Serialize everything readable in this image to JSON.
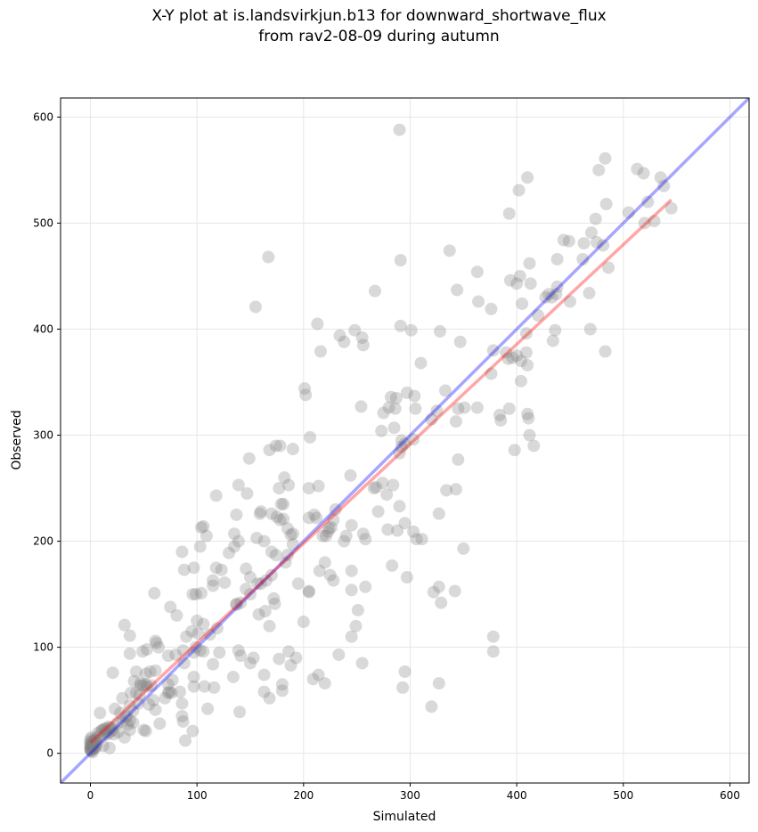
{
  "title_line1": "X-Y plot at is.landsvirkjun.b13 for downward_shortwave_flux",
  "title_line2": "from rav2-08-09 during autumn",
  "colors": {
    "points": "#808080",
    "identity_line": "#0000ff",
    "regression_line": "#ff0000",
    "grid": "#e6e6e6"
  },
  "chart_data": {
    "type": "scatter",
    "title": "X-Y plot at is.landsvirkjun.b13 for downward_shortwave_flux from rav2-08-09 during autumn",
    "xlabel": "Simulated",
    "ylabel": "Observed",
    "xlim": [
      -28,
      618
    ],
    "ylim": [
      -28,
      618
    ],
    "xticks": [
      0,
      100,
      200,
      300,
      400,
      500,
      600
    ],
    "yticks": [
      0,
      100,
      200,
      300,
      400,
      500,
      600
    ],
    "grid": true,
    "identity_line": {
      "x": [
        -28,
        618
      ],
      "y": [
        -28,
        618
      ]
    },
    "regression_line": {
      "x": [
        0,
        545
      ],
      "y": [
        10,
        522
      ]
    },
    "points": [
      [
        290,
        588
      ],
      [
        167,
        468
      ],
      [
        291,
        465
      ],
      [
        155,
        421
      ],
      [
        267,
        436
      ],
      [
        213,
        405
      ],
      [
        291,
        403
      ],
      [
        301,
        399
      ],
      [
        234,
        394
      ],
      [
        248,
        399
      ],
      [
        255,
        392
      ],
      [
        256,
        385
      ],
      [
        238,
        388
      ],
      [
        216,
        379
      ],
      [
        328,
        398
      ],
      [
        310,
        368
      ],
      [
        337,
        474
      ],
      [
        363,
        454
      ],
      [
        344,
        437
      ],
      [
        347,
        388
      ],
      [
        364,
        426
      ],
      [
        376,
        419
      ],
      [
        393,
        509
      ],
      [
        402,
        531
      ],
      [
        410,
        543
      ],
      [
        412,
        462
      ],
      [
        403,
        450
      ],
      [
        400,
        443
      ],
      [
        394,
        446
      ],
      [
        405,
        424
      ],
      [
        413,
        443
      ],
      [
        378,
        380
      ],
      [
        396,
        373
      ],
      [
        390,
        378
      ],
      [
        392,
        372
      ],
      [
        404,
        370
      ],
      [
        410,
        366
      ],
      [
        409,
        396
      ],
      [
        409,
        378
      ],
      [
        411,
        316
      ],
      [
        412,
        300
      ],
      [
        398,
        286
      ],
      [
        393,
        325
      ],
      [
        385,
        314
      ],
      [
        384,
        319
      ],
      [
        376,
        358
      ],
      [
        363,
        326
      ],
      [
        351,
        326
      ],
      [
        345,
        325
      ],
      [
        343,
        313
      ],
      [
        333,
        342
      ],
      [
        325,
        323
      ],
      [
        320,
        315
      ],
      [
        305,
        325
      ],
      [
        303,
        296
      ],
      [
        297,
        340
      ],
      [
        304,
        337
      ],
      [
        282,
        336
      ],
      [
        287,
        335
      ],
      [
        280,
        326
      ],
      [
        286,
        325
      ],
      [
        275,
        321
      ],
      [
        273,
        304
      ],
      [
        285,
        307
      ],
      [
        292,
        295
      ],
      [
        292,
        289
      ],
      [
        290,
        283
      ],
      [
        295,
        292
      ],
      [
        284,
        253
      ],
      [
        274,
        255
      ],
      [
        268,
        251
      ],
      [
        266,
        250
      ],
      [
        254,
        327
      ],
      [
        244,
        262
      ],
      [
        245,
        215
      ],
      [
        256,
        207
      ],
      [
        258,
        202
      ],
      [
        240,
        205
      ],
      [
        221,
        205
      ],
      [
        218,
        205
      ],
      [
        230,
        230
      ],
      [
        228,
        220
      ],
      [
        226,
        213
      ],
      [
        224,
        212
      ],
      [
        223,
        209
      ],
      [
        205,
        250
      ],
      [
        210,
        225
      ],
      [
        212,
        222
      ],
      [
        205,
        222
      ],
      [
        206,
        298
      ],
      [
        201,
        344
      ],
      [
        202,
        338
      ],
      [
        214,
        252
      ],
      [
        220,
        180
      ],
      [
        215,
        172
      ],
      [
        205,
        152
      ],
      [
        195,
        160
      ],
      [
        186,
        253
      ],
      [
        190,
        287
      ],
      [
        174,
        290
      ],
      [
        178,
        290
      ],
      [
        168,
        286
      ],
      [
        177,
        250
      ],
      [
        182,
        260
      ],
      [
        175,
        223
      ],
      [
        181,
        221
      ],
      [
        179,
        235
      ],
      [
        181,
        235
      ],
      [
        178,
        220
      ],
      [
        185,
        212
      ],
      [
        188,
        206
      ],
      [
        190,
        207
      ],
      [
        190,
        197
      ],
      [
        185,
        187
      ],
      [
        183,
        180
      ],
      [
        174,
        187
      ],
      [
        170,
        190
      ],
      [
        163,
        200
      ],
      [
        159,
        226
      ],
      [
        160,
        228
      ],
      [
        170,
        226
      ],
      [
        156,
        203
      ],
      [
        149,
        278
      ],
      [
        147,
        245
      ],
      [
        139,
        253
      ],
      [
        137,
        225
      ],
      [
        135,
        207
      ],
      [
        139,
        200
      ],
      [
        135,
        195
      ],
      [
        130,
        189
      ],
      [
        118,
        243
      ],
      [
        118,
        175
      ],
      [
        123,
        173
      ],
      [
        115,
        158
      ],
      [
        126,
        161
      ],
      [
        115,
        163
      ],
      [
        104,
        213
      ],
      [
        106,
        214
      ],
      [
        109,
        205
      ],
      [
        103,
        195
      ],
      [
        97,
        175
      ],
      [
        88,
        173
      ],
      [
        86,
        190
      ],
      [
        96,
        150
      ],
      [
        99,
        150
      ],
      [
        104,
        151
      ],
      [
        100,
        125
      ],
      [
        106,
        122
      ],
      [
        101,
        113
      ],
      [
        112,
        112
      ],
      [
        95,
        115
      ],
      [
        90,
        110
      ],
      [
        99,
        100
      ],
      [
        97,
        95
      ],
      [
        103,
        97
      ],
      [
        106,
        96
      ],
      [
        87,
        97
      ],
      [
        88,
        85
      ],
      [
        80,
        93
      ],
      [
        73,
        92
      ],
      [
        60,
        151
      ],
      [
        61,
        106
      ],
      [
        62,
        104
      ],
      [
        64,
        100
      ],
      [
        75,
        138
      ],
      [
        81,
        130
      ],
      [
        53,
        98
      ],
      [
        49,
        96
      ],
      [
        43,
        77
      ],
      [
        41,
        68
      ],
      [
        52,
        75
      ],
      [
        47,
        64
      ],
      [
        52,
        65
      ],
      [
        57,
        64
      ],
      [
        56,
        77
      ],
      [
        61,
        78
      ],
      [
        73,
        65
      ],
      [
        74,
        58
      ],
      [
        84,
        58
      ],
      [
        86,
        47
      ],
      [
        86,
        35
      ],
      [
        87,
        30
      ],
      [
        89,
        12
      ],
      [
        96,
        21
      ],
      [
        97,
        72
      ],
      [
        97,
        63
      ],
      [
        107,
        63
      ],
      [
        110,
        42
      ],
      [
        115,
        84
      ],
      [
        116,
        62
      ],
      [
        121,
        95
      ],
      [
        119,
        118
      ],
      [
        137,
        141
      ],
      [
        141,
        142
      ],
      [
        150,
        150
      ],
      [
        160,
        160
      ],
      [
        165,
        163
      ],
      [
        170,
        168
      ],
      [
        172,
        146
      ],
      [
        173,
        141
      ],
      [
        168,
        120
      ],
      [
        163,
        74
      ],
      [
        163,
        58
      ],
      [
        168,
        52
      ],
      [
        177,
        89
      ],
      [
        180,
        65
      ],
      [
        180,
        59
      ],
      [
        186,
        96
      ],
      [
        188,
        83
      ],
      [
        193,
        90
      ],
      [
        200,
        124
      ],
      [
        205,
        153
      ],
      [
        209,
        70
      ],
      [
        214,
        74
      ],
      [
        220,
        66
      ],
      [
        225,
        168
      ],
      [
        228,
        163
      ],
      [
        233,
        93
      ],
      [
        238,
        200
      ],
      [
        245,
        172
      ],
      [
        245,
        154
      ],
      [
        245,
        110
      ],
      [
        249,
        120
      ],
      [
        251,
        135
      ],
      [
        255,
        85
      ],
      [
        258,
        157
      ],
      [
        270,
        228
      ],
      [
        278,
        244
      ],
      [
        279,
        211
      ],
      [
        283,
        177
      ],
      [
        288,
        210
      ],
      [
        290,
        233
      ],
      [
        295,
        217
      ],
      [
        303,
        209
      ],
      [
        306,
        202
      ],
      [
        311,
        202
      ],
      [
        327,
        226
      ],
      [
        327,
        157
      ],
      [
        329,
        142
      ],
      [
        334,
        248
      ],
      [
        343,
        249
      ],
      [
        345,
        277
      ],
      [
        350,
        193
      ],
      [
        342,
        153
      ],
      [
        322,
        152
      ],
      [
        327,
        66
      ],
      [
        320,
        44
      ],
      [
        295,
        77
      ],
      [
        293,
        62
      ],
      [
        297,
        166
      ],
      [
        137,
        140
      ],
      [
        139,
        97
      ],
      [
        141,
        92
      ],
      [
        134,
        72
      ],
      [
        140,
        39
      ],
      [
        146,
        174
      ],
      [
        150,
        166
      ],
      [
        146,
        155
      ],
      [
        150,
        85
      ],
      [
        153,
        90
      ],
      [
        164,
        134
      ],
      [
        158,
        131
      ],
      [
        157,
        160
      ],
      [
        378,
        110
      ],
      [
        378,
        96
      ],
      [
        483,
        379
      ],
      [
        469,
        400
      ],
      [
        468,
        434
      ],
      [
        450,
        426
      ],
      [
        433,
        430
      ],
      [
        434,
        389
      ],
      [
        438,
        440
      ],
      [
        437,
        433
      ],
      [
        438,
        466
      ],
      [
        444,
        484
      ],
      [
        449,
        483
      ],
      [
        463,
        481
      ],
      [
        462,
        466
      ],
      [
        470,
        491
      ],
      [
        474,
        504
      ],
      [
        475,
        482
      ],
      [
        481,
        479
      ],
      [
        477,
        550
      ],
      [
        483,
        561
      ],
      [
        484,
        518
      ],
      [
        486,
        458
      ],
      [
        505,
        510
      ],
      [
        513,
        551
      ],
      [
        519,
        547
      ],
      [
        520,
        500
      ],
      [
        523,
        520
      ],
      [
        529,
        502
      ],
      [
        535,
        543
      ],
      [
        538,
        535
      ],
      [
        545,
        514
      ],
      [
        400,
        375
      ],
      [
        404,
        351
      ],
      [
        410,
        320
      ],
      [
        416,
        290
      ],
      [
        436,
        399
      ],
      [
        420,
        413
      ],
      [
        427,
        430
      ],
      [
        430,
        433
      ],
      [
        37,
        111
      ],
      [
        32,
        121
      ],
      [
        37,
        94
      ],
      [
        21,
        76
      ],
      [
        30,
        52
      ],
      [
        23,
        42
      ],
      [
        28,
        38
      ],
      [
        20,
        24
      ],
      [
        16,
        18
      ],
      [
        18,
        24
      ],
      [
        15,
        20
      ],
      [
        13,
        18
      ],
      [
        9,
        38
      ],
      [
        8,
        16
      ],
      [
        5,
        14
      ],
      [
        4,
        12
      ],
      [
        3,
        10
      ],
      [
        2,
        8
      ],
      [
        1,
        6
      ],
      [
        0,
        5
      ],
      [
        0,
        4
      ],
      [
        0,
        3
      ],
      [
        1,
        8
      ],
      [
        2,
        10
      ],
      [
        3,
        12
      ],
      [
        5,
        12
      ],
      [
        4,
        5
      ],
      [
        3,
        5
      ],
      [
        2,
        4
      ],
      [
        1,
        3
      ],
      [
        0,
        7
      ],
      [
        0,
        9
      ],
      [
        0,
        11
      ],
      [
        0,
        13
      ],
      [
        1,
        15
      ],
      [
        7,
        19
      ],
      [
        11,
        22
      ],
      [
        13,
        23
      ],
      [
        17,
        25
      ],
      [
        25,
        28
      ],
      [
        30,
        30
      ],
      [
        33,
        34
      ],
      [
        35,
        27
      ],
      [
        37,
        31
      ],
      [
        40,
        29
      ],
      [
        45,
        47
      ],
      [
        46,
        55
      ],
      [
        47,
        66
      ],
      [
        50,
        64
      ],
      [
        53,
        63
      ],
      [
        55,
        46
      ],
      [
        59,
        50
      ],
      [
        61,
        41
      ],
      [
        65,
        28
      ],
      [
        70,
        52
      ],
      [
        73,
        57
      ],
      [
        76,
        57
      ],
      [
        77,
        69
      ],
      [
        37,
        45
      ],
      [
        40,
        40
      ],
      [
        43,
        57
      ],
      [
        50,
        22
      ],
      [
        52,
        21
      ],
      [
        37,
        22
      ],
      [
        34,
        35
      ],
      [
        22,
        18
      ],
      [
        18,
        20
      ],
      [
        12,
        7
      ],
      [
        18,
        5
      ],
      [
        32,
        15
      ],
      [
        26,
        20
      ],
      [
        38,
        57
      ],
      [
        21,
        22
      ],
      [
        14,
        23
      ],
      [
        10,
        21
      ],
      [
        6,
        9
      ],
      [
        5,
        6
      ],
      [
        1,
        2
      ],
      [
        2,
        1
      ]
    ]
  }
}
